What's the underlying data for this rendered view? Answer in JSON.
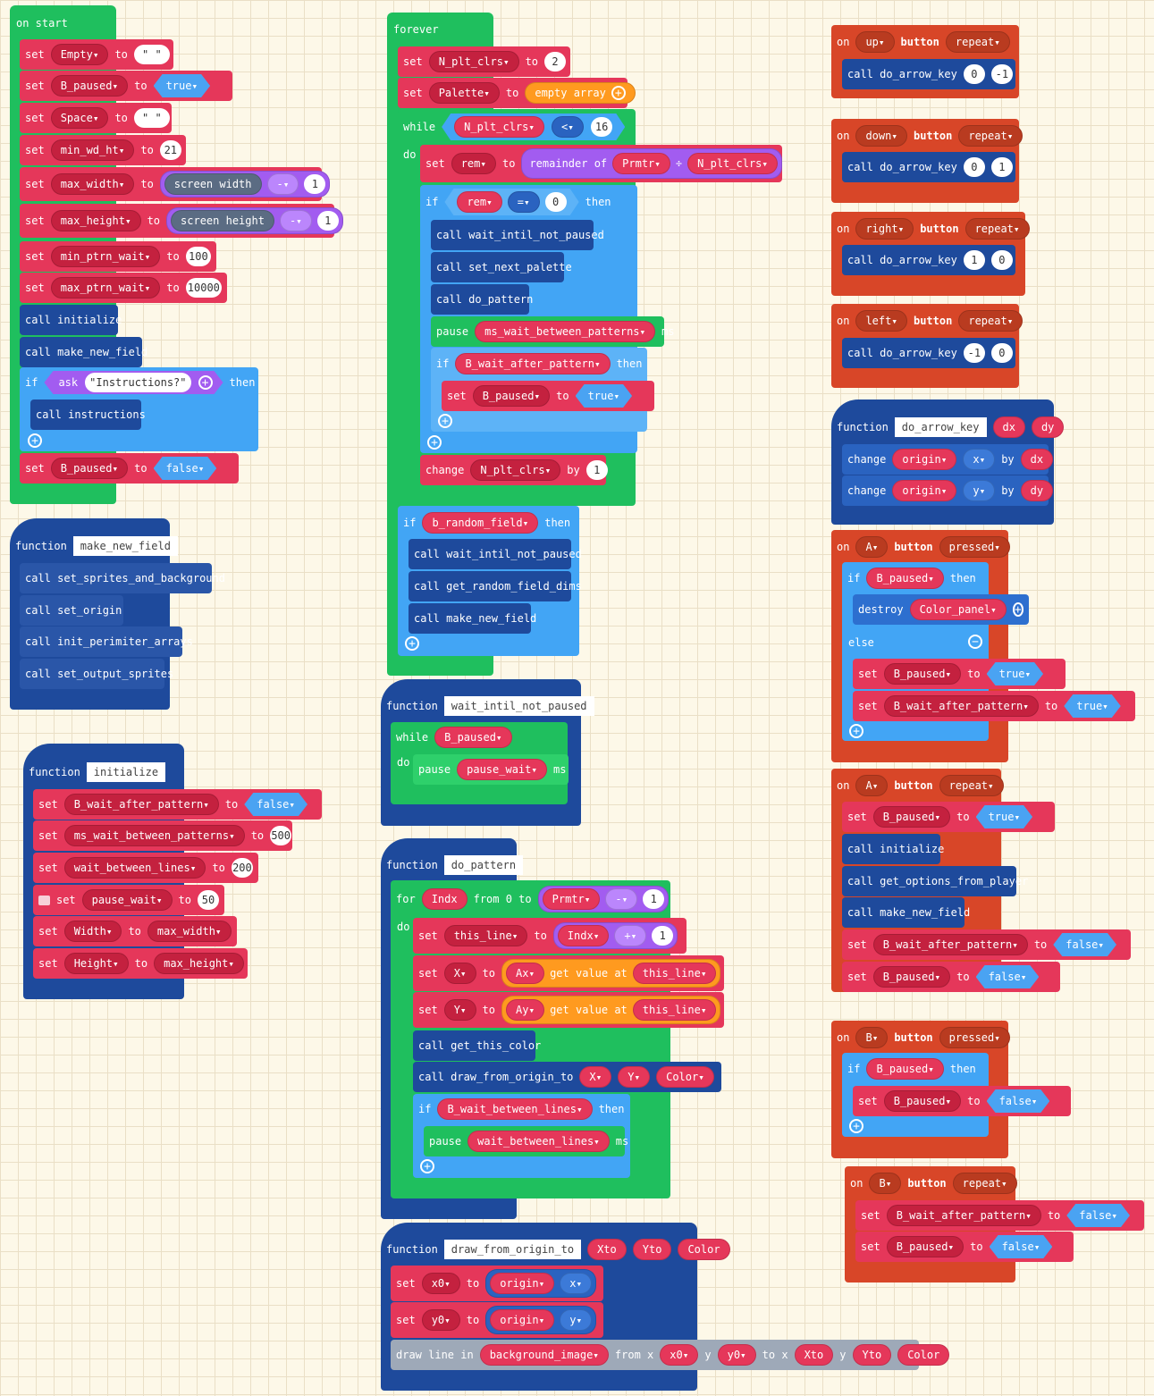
{
  "colors": {
    "variables": "#e5375a",
    "functions": "#1e4a9c",
    "loops": "#1fbf5e",
    "logic": "#42a5f5",
    "math": "#a25cf0",
    "input": "#d84628",
    "arrays": "#ff9a1f",
    "images": "#9ea9b8"
  },
  "on_start": {
    "title": "on start",
    "rows": [
      {
        "kw": "set",
        "var": "Empty",
        "to": "to",
        "val": "\" \""
      },
      {
        "kw": "set",
        "var": "B_paused",
        "to": "to",
        "val": "true"
      },
      {
        "kw": "set",
        "var": "Space",
        "to": "to",
        "val": "\" \""
      },
      {
        "kw": "set",
        "var": "min_wd_ht",
        "to": "to",
        "val": "21"
      },
      {
        "kw": "set",
        "var": "max_width",
        "to": "to",
        "expr": "screen width",
        "op": "-",
        "n": "1"
      },
      {
        "kw": "set",
        "var": "max_height",
        "to": "to",
        "expr": "screen height",
        "op": "-",
        "n": "1"
      },
      {
        "kw": "set",
        "var": "min_ptrn_wait",
        "to": "to",
        "val": "100"
      },
      {
        "kw": "set",
        "var": "max_ptrn_wait",
        "to": "to",
        "val": "10000"
      }
    ],
    "call1": "call initialize",
    "call2": "call make_new_field",
    "if_kw": "if",
    "ask": "ask",
    "ask_str": "\"Instructions?\"",
    "then": "then",
    "call3": "call instructions",
    "last": {
      "kw": "set",
      "var": "B_paused",
      "to": "to",
      "val": "false"
    }
  },
  "fn_make_new_field": {
    "kw": "function",
    "name": "make_new_field",
    "calls": [
      "call set_sprites_and_background",
      "call set_origin",
      "call init_perimiter_arrays",
      "call set_output_sprites"
    ]
  },
  "fn_initialize": {
    "kw": "function",
    "name": "initialize",
    "rows": [
      {
        "kw": "set",
        "var": "B_wait_after_pattern",
        "to": "to",
        "val": "false"
      },
      {
        "kw": "set",
        "var": "ms_wait_between_patterns",
        "to": "to",
        "val": "500"
      },
      {
        "kw": "set",
        "var": "wait_between_lines",
        "to": "to",
        "val": "200"
      },
      {
        "kw": "set",
        "var": "pause_wait",
        "to": "to",
        "val": "50"
      },
      {
        "kw": "set",
        "var": "Width",
        "to": "to",
        "val": "max_width"
      },
      {
        "kw": "set",
        "var": "Height",
        "to": "to",
        "val": "max_height"
      }
    ]
  },
  "forever": {
    "title": "forever",
    "set1": {
      "kw": "set",
      "var": "N_plt_clrs",
      "to": "to",
      "val": "2"
    },
    "set2": {
      "kw": "set",
      "var": "Palette",
      "to": "to",
      "val": "empty array"
    },
    "while": {
      "kw": "while",
      "var": "N_plt_clrs",
      "op": "<",
      "val": "16",
      "do": "do"
    },
    "set_rem": {
      "kw": "set",
      "var": "rem",
      "to": "to",
      "fn": "remainder of",
      "a": "Prmtr",
      "op": "÷",
      "b": "N_plt_clrs"
    },
    "if_rem": {
      "kw": "if",
      "var": "rem",
      "op": "=",
      "val": "0",
      "then": "then"
    },
    "calls": [
      "call wait_intil_not_paused",
      "call set_next_palette",
      "call do_pattern"
    ],
    "pause": {
      "kw": "pause",
      "var": "ms_wait_between_patterns",
      "unit": "ms"
    },
    "if2": {
      "kw": "if",
      "var": "B_wait_after_pattern",
      "then": "then"
    },
    "set3": {
      "kw": "set",
      "var": "B_paused",
      "to": "to",
      "val": "true"
    },
    "change": {
      "kw": "change",
      "var": "N_plt_clrs",
      "by": "by",
      "val": "1"
    },
    "if3": {
      "kw": "if",
      "var": "b_random_field",
      "then": "then"
    },
    "calls2": [
      "call wait_intil_not_paused",
      "call get_random_field_dims",
      "call make_new_field"
    ]
  },
  "fn_wait": {
    "kw": "function",
    "name": "wait_intil_not_paused",
    "while": "while",
    "var": "B_paused",
    "do": "do",
    "pause": "pause",
    "pvar": "pause_wait",
    "unit": "ms"
  },
  "fn_do_pattern": {
    "kw": "function",
    "name": "do_pattern",
    "for": "for",
    "idx": "Indx",
    "from": "from 0 to",
    "prm": "Prmtr",
    "op": "-",
    "n": "1",
    "do": "do",
    "set_line": {
      "kw": "set",
      "var": "this_line",
      "to": "to",
      "a": "Indx",
      "op": "+",
      "n": "1"
    },
    "set_x": {
      "kw": "set",
      "var": "X",
      "to": "to",
      "arr": "Ax",
      "get": "get value at",
      "idx": "this_line"
    },
    "set_y": {
      "kw": "set",
      "var": "Y",
      "to": "to",
      "arr": "Ay",
      "get": "get value at",
      "idx": "this_line"
    },
    "call1": "call get_this_color",
    "call2": "call draw_from_origin_to",
    "args": [
      "X",
      "Y",
      "Color"
    ],
    "if": "if",
    "cond": "B_wait_between_lines",
    "then": "then",
    "pause": "pause",
    "pvar": "wait_between_lines",
    "unit": "ms"
  },
  "fn_draw": {
    "kw": "function",
    "name": "draw_from_origin_to",
    "params": [
      "Xto",
      "Yto",
      "Color"
    ],
    "set_x0": {
      "kw": "set",
      "var": "x0",
      "to": "to",
      "obj": "origin",
      "prop": "x"
    },
    "set_y0": {
      "kw": "set",
      "var": "y0",
      "to": "to",
      "obj": "origin",
      "prop": "y"
    },
    "draw": {
      "kw": "draw line in",
      "img": "background_image",
      "from": "from x",
      "x": "x0",
      "y_kw": "y",
      "y": "y0",
      "to": "to x",
      "xto": "Xto",
      "y2": "y",
      "yto": "Yto",
      "color": "Color"
    }
  },
  "buttons": [
    {
      "on": "on",
      "btn": "up",
      "button": "button",
      "ev": "repeat",
      "call": "call do_arrow_key",
      "a": "0",
      "b": "-1"
    },
    {
      "on": "on",
      "btn": "down",
      "button": "button",
      "ev": "repeat",
      "call": "call do_arrow_key",
      "a": "0",
      "b": "1"
    },
    {
      "on": "on",
      "btn": "right",
      "button": "button",
      "ev": "repeat",
      "call": "call do_arrow_key",
      "a": "1",
      "b": "0"
    },
    {
      "on": "on",
      "btn": "left",
      "button": "button",
      "ev": "repeat",
      "call": "call do_arrow_key",
      "a": "-1",
      "b": "0"
    }
  ],
  "fn_arrow": {
    "kw": "function",
    "name": "do_arrow_key",
    "params": [
      "dx",
      "dy"
    ],
    "rows": [
      {
        "kw": "change",
        "obj": "origin",
        "prop": "x",
        "by": "by",
        "val": "dx"
      },
      {
        "kw": "change",
        "obj": "origin",
        "prop": "y",
        "by": "by",
        "val": "dy"
      }
    ]
  },
  "a_pressed": {
    "on": "on",
    "btn": "A",
    "button": "button",
    "ev": "pressed",
    "if": "if",
    "cond": "B_paused",
    "then": "then",
    "destroy": "destroy",
    "sprite": "Color_panel",
    "else": "else",
    "set1": {
      "kw": "set",
      "var": "B_paused",
      "to": "to",
      "val": "true"
    },
    "set2": {
      "kw": "set",
      "var": "B_wait_after_pattern",
      "to": "to",
      "val": "true"
    }
  },
  "a_repeat": {
    "on": "on",
    "btn": "A",
    "button": "button",
    "ev": "repeat",
    "set1": {
      "kw": "set",
      "var": "B_paused",
      "to": "to",
      "val": "true"
    },
    "calls": [
      "call initialize",
      "call get_options_from_player",
      "call make_new_field"
    ],
    "set2": {
      "kw": "set",
      "var": "B_wait_after_pattern",
      "to": "to",
      "val": "false"
    },
    "set3": {
      "kw": "set",
      "var": "B_paused",
      "to": "to",
      "val": "false"
    }
  },
  "b_pressed": {
    "on": "on",
    "btn": "B",
    "button": "button",
    "ev": "pressed",
    "if": "if",
    "cond": "B_paused",
    "then": "then",
    "set1": {
      "kw": "set",
      "var": "B_paused",
      "to": "to",
      "val": "false"
    }
  },
  "b_repeat": {
    "on": "on",
    "btn": "B",
    "button": "button",
    "ev": "repeat",
    "set1": {
      "kw": "set",
      "var": "B_wait_after_pattern",
      "to": "to",
      "val": "false"
    },
    "set2": {
      "kw": "set",
      "var": "B_paused",
      "to": "to",
      "val": "false"
    }
  }
}
